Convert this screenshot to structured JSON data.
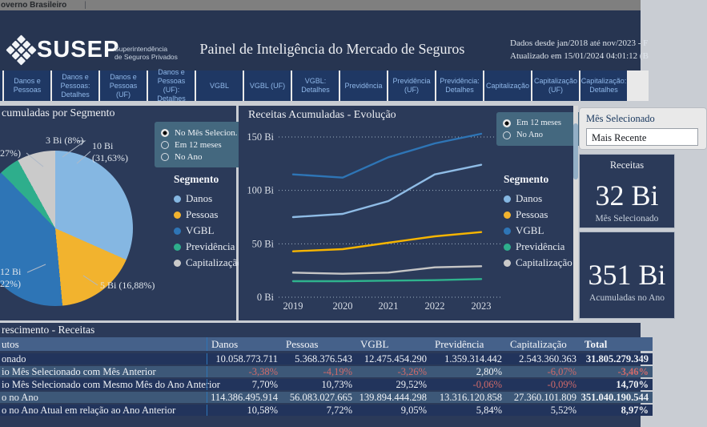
{
  "top_bar": {
    "text": "overno Brasileiro",
    "separator": "|"
  },
  "header": {
    "logo_text": "SUSEP",
    "logo_sub1": "Superintendência",
    "logo_sub2": "de Seguros Privados",
    "title": "Painel de Inteligência do Mercado de Seguros",
    "info_line1": "Dados desde jan/2018 até nov/2023 - F",
    "info_line2": "Atualizado em 15/01/2024 04:01:12 (B"
  },
  "tabs": [
    "Danos e Pessoas",
    "Danos e Pessoas: Detalhes",
    "Danos e Pessoas (UF)",
    "Danos e Pessoas (UF): Detalhes",
    "VGBL",
    "VGBL (UF)",
    "VGBL: Detalhes",
    "Previdência",
    "Previdência (UF)",
    "Previdência: Detalhes",
    "Capitalização",
    "Capitalização (UF)",
    "Capitalização: Detalhes"
  ],
  "pie_panel": {
    "title": "cumuladas por Segmento",
    "radios": [
      {
        "label": "No Mês Selecion. ...",
        "selected": true
      },
      {
        "label": "Em 12 meses",
        "selected": false
      },
      {
        "label": "No Ano",
        "selected": false
      }
    ],
    "legend_title": "Segmento",
    "slice_labels": [
      [
        "10 Bi",
        "(31,63%)"
      ],
      [
        "5 Bi (16,88%)"
      ],
      [
        "12 Bi",
        "22%)"
      ],
      [
        "27%)"
      ],
      [
        "3 Bi (8%)"
      ]
    ]
  },
  "line_panel": {
    "title": "Receitas Acumuladas - Evolução",
    "radios": [
      {
        "label": "Em 12 meses",
        "selected": true
      },
      {
        "label": "No Ano",
        "selected": false
      }
    ],
    "legend_title": "Segmento"
  },
  "segments": [
    {
      "label": "Danos",
      "color": "#85B7E2"
    },
    {
      "label": "Pessoas",
      "color": "#F2B32E"
    },
    {
      "label": "VGBL",
      "color": "#2E75B6"
    },
    {
      "label": "Previdência",
      "color": "#2EAE8C"
    },
    {
      "label": "Capitalização",
      "color": "#CACACA"
    }
  ],
  "right_column": {
    "selector_label": "Mês Selecionado",
    "selector_value": "Mais Recente",
    "cards": [
      {
        "title": "Receitas",
        "value": "32 Bi",
        "subtitle": "Mês Selecionado"
      },
      {
        "title": "",
        "value": "351 Bi",
        "subtitle": "Acumuladas no Ano"
      }
    ]
  },
  "table": {
    "title": "rescimento - Receitas",
    "header": [
      "utos",
      "Danos",
      "Pessoas",
      "VGBL",
      "Previdência",
      "Capitalização",
      "Total"
    ],
    "rows": [
      {
        "label": "onado",
        "values": [
          "10.058.773.711",
          "5.368.376.543",
          "12.475.454.290",
          "1.359.314.442",
          "2.543.360.363",
          "31.805.279.349"
        ]
      },
      {
        "label": "io Mês Selecionado com Mês Anterior",
        "values": [
          "-3,38%",
          "-4,19%",
          "-3,26%",
          "2,80%",
          "-6,07%",
          "-3,46%"
        ]
      },
      {
        "label": "io Mês Selecionado com Mesmo Mês do Ano Anterior",
        "values": [
          "7,70%",
          "10,73%",
          "29,52%",
          "-0,06%",
          "-0,09%",
          "14,70%"
        ]
      },
      {
        "label": "o no Ano",
        "values": [
          "114.386.495.914",
          "56.083.027.665",
          "139.894.444.298",
          "13.316.120.858",
          "27.360.101.809",
          "351.040.190.544"
        ]
      },
      {
        "label": "o no Ano Atual em relação ao Ano Anterior",
        "values": [
          "10,58%",
          "7,72%",
          "9,05%",
          "5,84%",
          "5,52%",
          "8,97%"
        ]
      }
    ]
  },
  "chart_data": [
    {
      "type": "pie",
      "title": "cumuladas por Segmento",
      "categories": [
        "Danos",
        "Pessoas",
        "VGBL",
        "Previdência",
        "Capitalização"
      ],
      "values": [
        31.63,
        16.88,
        39.22,
        4.27,
        8.0
      ],
      "amounts_bi": [
        10,
        5,
        12,
        null,
        3
      ],
      "colors": [
        "#85B7E2",
        "#F2B32E",
        "#2E75B6",
        "#2EAE8C",
        "#CACACA"
      ],
      "legend_position": "right"
    },
    {
      "type": "line",
      "title": "Receitas Acumuladas - Evolução",
      "x": [
        2019,
        2020,
        2021,
        2022,
        2023
      ],
      "series": [
        {
          "name": "Danos",
          "color": "#8FBCE6",
          "values": [
            75,
            78,
            90,
            115,
            124
          ]
        },
        {
          "name": "Pessoas",
          "color": "#F7B500",
          "values": [
            43,
            45,
            51,
            57,
            61
          ]
        },
        {
          "name": "VGBL",
          "color": "#2E75B6",
          "values": [
            115,
            112,
            131,
            144,
            153
          ]
        },
        {
          "name": "Previdência",
          "color": "#2FB38D",
          "values": [
            15,
            15,
            15.5,
            16,
            17
          ]
        },
        {
          "name": "Capitalização",
          "color": "#C6C6C6",
          "values": [
            23,
            22,
            23,
            28,
            29
          ]
        }
      ],
      "ylabel_ticks": [
        "0 Bi",
        "50 Bi",
        "100 Bi",
        "150 Bi"
      ],
      "ytick_values": [
        0,
        50,
        100,
        150
      ],
      "ylim": [
        0,
        165
      ],
      "grid": "dotted-horizontal",
      "legend_position": "right"
    }
  ]
}
